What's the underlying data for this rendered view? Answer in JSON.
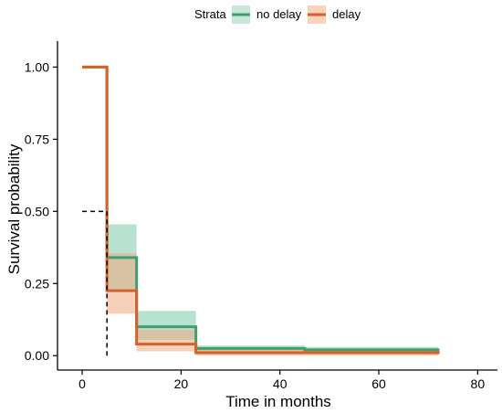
{
  "chart_data": {
    "type": "line",
    "subtype": "kaplan-meier step",
    "xlabel": "Time in months",
    "ylabel": "Survival probability",
    "xlim": [
      -5,
      84
    ],
    "ylim": [
      -0.05,
      1.09
    ],
    "xticks": [
      0,
      20,
      40,
      60,
      80
    ],
    "yticks": [
      0.0,
      0.25,
      0.5,
      0.75,
      1.0
    ],
    "ytick_labels": [
      "0.00",
      "0.25",
      "0.50",
      "0.75",
      "1.00"
    ],
    "grid": false,
    "legend": {
      "placement": "top",
      "title": "Strata",
      "entries": [
        "no delay",
        "delay"
      ]
    },
    "median_line": {
      "y": 0.5,
      "x": 5,
      "style": "dashed",
      "color": "#000000"
    },
    "series": [
      {
        "name": "no delay",
        "color": "#3f9f72",
        "band_color": "#7fc9a7",
        "steps": [
          {
            "x": 0,
            "y": 1.0,
            "lower": 1.0,
            "upper": 1.0
          },
          {
            "x": 5,
            "y": 0.34,
            "lower": 0.23,
            "upper": 0.455
          },
          {
            "x": 11,
            "y": 0.1,
            "lower": 0.055,
            "upper": 0.155
          },
          {
            "x": 23,
            "y": 0.025,
            "lower": 0.005,
            "upper": 0.035
          },
          {
            "x": 45,
            "y": 0.02,
            "lower": 0.005,
            "upper": 0.03
          },
          {
            "x": 72,
            "y": 0.01,
            "lower": 0.005,
            "upper": 0.015
          }
        ]
      },
      {
        "name": "delay",
        "color": "#d95f2b",
        "band_color": "#f0a97f",
        "steps": [
          {
            "x": 0,
            "y": 1.0,
            "lower": 1.0,
            "upper": 1.0
          },
          {
            "x": 5,
            "y": 0.225,
            "lower": 0.145,
            "upper": 0.355
          },
          {
            "x": 11,
            "y": 0.04,
            "lower": 0.015,
            "upper": 0.09
          },
          {
            "x": 23,
            "y": 0.01,
            "lower": 0.0,
            "upper": 0.02
          },
          {
            "x": 72,
            "y": 0.005,
            "lower": 0.0,
            "upper": 0.01
          }
        ]
      }
    ]
  }
}
